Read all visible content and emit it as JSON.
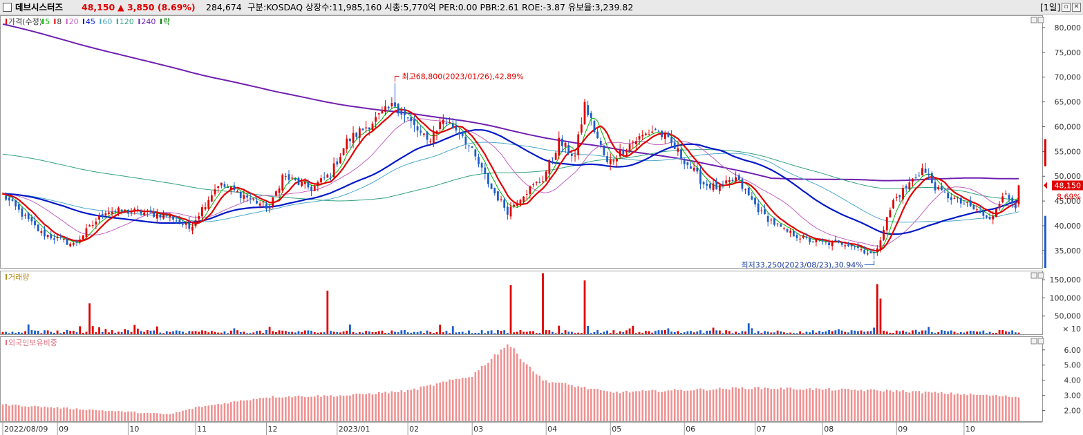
{
  "header": {
    "stock_name": "데브시스터즈",
    "price": "48,150",
    "change": "▲ 3,850 (8.69%)",
    "volume": "284,674",
    "market_info": "구분:KOSDAQ 상장수:11,985,160 시총:5,770억 PER:0.00 PBR:2.61 ROE:-3.87 유보율:3,239.82",
    "period": "[1일]"
  },
  "price_panel": {
    "legend": [
      {
        "label": "가격(수정)",
        "color": "#e00000"
      },
      {
        "label": "5",
        "color": "#00b000"
      },
      {
        "label": "8",
        "color": "#e00000"
      },
      {
        "label": "20",
        "color": "#c060c0"
      },
      {
        "label": "45",
        "color": "#0018c8"
      },
      {
        "label": "60",
        "color": "#4aa8c8"
      },
      {
        "label": "120",
        "color": "#30a080"
      },
      {
        "label": "240",
        "color": "#7020b0"
      },
      {
        "label": "락",
        "color": "#008000"
      }
    ],
    "y_ticks": [
      "35,000",
      "40,000",
      "45,000",
      "50,000",
      "55,000",
      "60,000",
      "65,000",
      "70,000",
      "75,000",
      "80,000"
    ],
    "high_annotation": "최고68,800(2023/01/26),42.89%",
    "low_annotation": "최저33,250(2023/08/23),30.94%",
    "current_price_tag": "48,150",
    "current_change_tag": "8.69%"
  },
  "volume_panel": {
    "legend": "거래량",
    "y_ticks": [
      "50,000",
      "100,000",
      "150,000"
    ],
    "multiplier": "× 10"
  },
  "foreign_panel": {
    "legend": "외국인보유비중",
    "y_ticks": [
      "2.00",
      "3.00",
      "4.00",
      "5.00",
      "6.00"
    ]
  },
  "x_axis": {
    "labels": [
      "2022/08/09",
      "09",
      "10",
      "11",
      "12",
      "2023/01",
      "02",
      "03",
      "04",
      "05",
      "06",
      "07",
      "08",
      "09",
      "10"
    ]
  },
  "colors": {
    "up": "#e00000",
    "down": "#1a5cc8",
    "ma5": "#00b000",
    "ma8": "#e00000",
    "ma20": "#c060c0",
    "ma45": "#0018c8",
    "ma60": "#4aa8c8",
    "ma120": "#30a080",
    "ma240": "#7020b0",
    "foreign_bar": "#f09090"
  },
  "chart_data": {
    "type": "candlestick",
    "x_start": "2022/08/09",
    "close_key_points": [
      {
        "date": "2022/08/09",
        "close": 46200
      },
      {
        "date": "2022/08/25",
        "close": 38500
      },
      {
        "date": "2022/09/08",
        "close": 36200
      },
      {
        "date": "2022/09/22",
        "close": 43000
      },
      {
        "date": "2022/10/06",
        "close": 42800
      },
      {
        "date": "2022/10/20",
        "close": 42000
      },
      {
        "date": "2022/10/28",
        "close": 39500
      },
      {
        "date": "2022/11/10",
        "close": 48500
      },
      {
        "date": "2022/11/24",
        "close": 45500
      },
      {
        "date": "2022/12/02",
        "close": 43500
      },
      {
        "date": "2022/12/08",
        "close": 50000
      },
      {
        "date": "2022/12/21",
        "close": 47500
      },
      {
        "date": "2022/12/29",
        "close": 50500
      },
      {
        "date": "2023/01/05",
        "close": 57000
      },
      {
        "date": "2023/01/19",
        "close": 62000
      },
      {
        "date": "2023/01/26",
        "close": 64500
      },
      {
        "date": "2023/02/09",
        "close": 57000
      },
      {
        "date": "2023/02/16",
        "close": 61500
      },
      {
        "date": "2023/02/24",
        "close": 58500
      },
      {
        "date": "2023/03/09",
        "close": 47500
      },
      {
        "date": "2023/03/16",
        "close": 43000
      },
      {
        "date": "2023/03/23",
        "close": 46500
      },
      {
        "date": "2023/03/31",
        "close": 49500
      },
      {
        "date": "2023/04/07",
        "close": 57000
      },
      {
        "date": "2023/04/14",
        "close": 54000
      },
      {
        "date": "2023/04/19",
        "close": 64500
      },
      {
        "date": "2023/04/28",
        "close": 52500
      },
      {
        "date": "2023/05/10",
        "close": 57000
      },
      {
        "date": "2023/05/19",
        "close": 59500
      },
      {
        "date": "2023/05/26",
        "close": 56500
      },
      {
        "date": "2023/06/09",
        "close": 48500
      },
      {
        "date": "2023/06/16",
        "close": 47500
      },
      {
        "date": "2023/06/23",
        "close": 49500
      },
      {
        "date": "2023/07/05",
        "close": 42500
      },
      {
        "date": "2023/07/14",
        "close": 39000
      },
      {
        "date": "2023/07/26",
        "close": 37000
      },
      {
        "date": "2023/08/02",
        "close": 36500
      },
      {
        "date": "2023/08/11",
        "close": 36500
      },
      {
        "date": "2023/08/23",
        "close": 34000
      },
      {
        "date": "2023/08/31",
        "close": 45000
      },
      {
        "date": "2023/09/07",
        "close": 48500
      },
      {
        "date": "2023/09/13",
        "close": 51500
      },
      {
        "date": "2023/09/20",
        "close": 47000
      },
      {
        "date": "2023/10/06",
        "close": 43000
      },
      {
        "date": "2023/10/12",
        "close": 41000
      },
      {
        "date": "2023/10/18",
        "close": 46500
      },
      {
        "date": "2023/10/24",
        "close": 44300
      },
      {
        "date": "2023/10/25",
        "close": 48150
      }
    ],
    "high": {
      "date": "2023/01/26",
      "value": 68800
    },
    "low": {
      "date": "2023/08/23",
      "value": 33250
    },
    "last_close": 48150,
    "price_range": [
      31500,
      82500
    ],
    "volume_range": [
      0,
      175000
    ],
    "volume_unit": "× 10",
    "volume_spikes": [
      {
        "date": "2022/09/15",
        "value": 85000
      },
      {
        "date": "2022/12/28",
        "value": 120000
      },
      {
        "date": "2023/03/17",
        "value": 135000
      },
      {
        "date": "2023/03/31",
        "value": 168000
      },
      {
        "date": "2023/04/19",
        "value": 148000
      },
      {
        "date": "2023/08/24",
        "value": 138000
      },
      {
        "date": "2023/08/25",
        "value": 98000
      }
    ],
    "foreign_ratio_range": [
      1.3,
      6.9
    ],
    "foreign_ratio_key_points": [
      {
        "date": "2022/08/09",
        "value": 2.4
      },
      {
        "date": "2022/10/20",
        "value": 1.75
      },
      {
        "date": "2022/11/01",
        "value": 2.2
      },
      {
        "date": "2022/12/01",
        "value": 2.9
      },
      {
        "date": "2023/01/05",
        "value": 3.0
      },
      {
        "date": "2023/02/01",
        "value": 3.3
      },
      {
        "date": "2023/03/01",
        "value": 4.3
      },
      {
        "date": "2023/03/16",
        "value": 6.4
      },
      {
        "date": "2023/03/31",
        "value": 4.0
      },
      {
        "date": "2023/05/01",
        "value": 3.2
      },
      {
        "date": "2023/07/01",
        "value": 3.5
      },
      {
        "date": "2023/09/01",
        "value": 3.3
      },
      {
        "date": "2023/10/25",
        "value": 2.9
      }
    ],
    "moving_averages": [
      5,
      8,
      20,
      45,
      60,
      120,
      240
    ]
  }
}
